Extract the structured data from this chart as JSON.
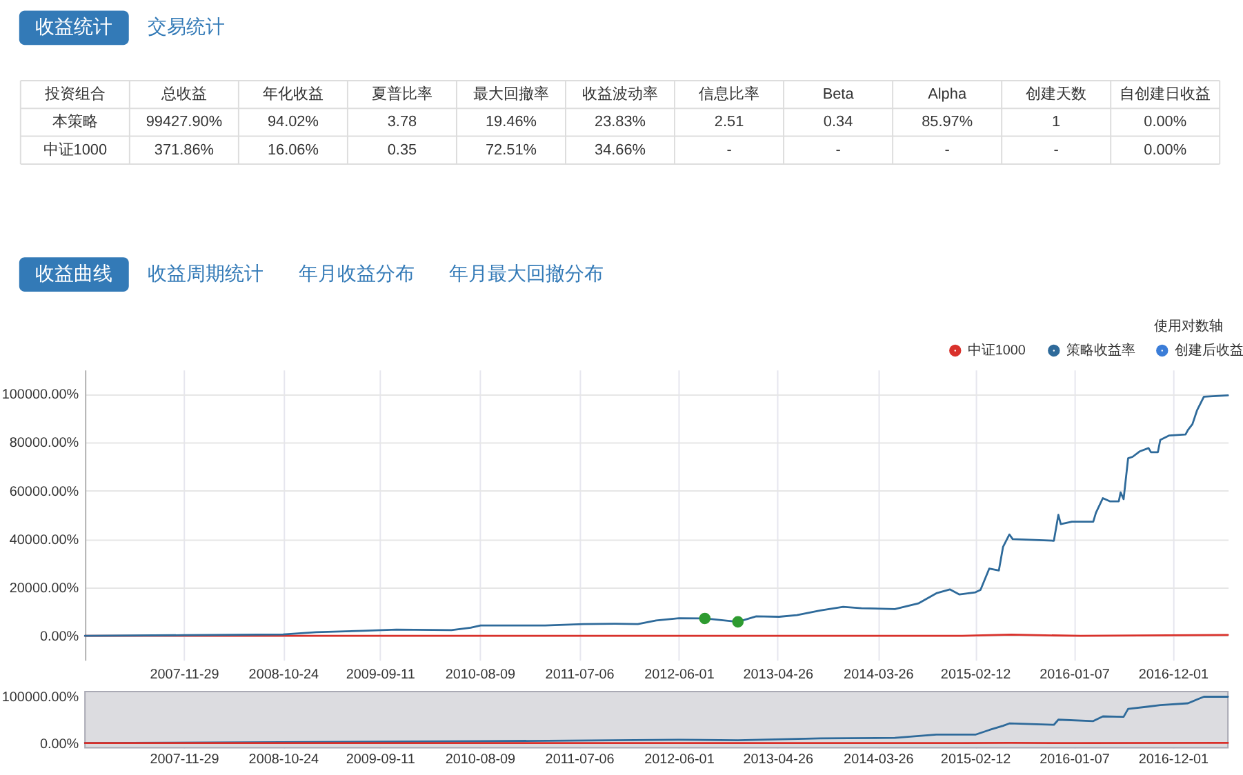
{
  "chart_data": [
    {
      "type": "other",
      "annotations": [
        "收益统计",
        "交易统计"
      ],
      "ylabel": "投资组合",
      "categories": [
        "总收益",
        "年化收益",
        "夏普比率",
        "最大回撤率",
        "收益波动率",
        "信息比率",
        "Beta",
        "Alpha",
        "创建天数",
        "自创建日收益"
      ],
      "y_categories": [
        "本策略",
        "中证1000"
      ],
      "cell_labels": [
        [
          "99427.90%",
          "94.02%",
          "3.78",
          "19.46%",
          "23.83%",
          "2.51",
          "0.34",
          "85.97%",
          "1",
          "0.00%"
        ],
        [
          "371.86%",
          "16.06%",
          "0.35",
          "72.51%",
          "34.66%",
          "-",
          "-",
          "-",
          "-",
          "0.00%"
        ]
      ]
    },
    {
      "type": "other",
      "annotations": [
        "收益曲线",
        "收益周期统计",
        "年月收益分布",
        "年月最大回撤分布"
      ]
    },
    {
      "type": "line",
      "annotations": [
        "使用对数轴"
      ],
      "xlim": [
        "2007-01-04",
        "2017-06-02"
      ],
      "ylim": [
        -10000,
        110000
      ],
      "xticks": [
        "2007-11-29",
        "2008-10-24",
        "2009-09-11",
        "2010-08-09",
        "2011-07-06",
        "2012-06-01",
        "2013-04-26",
        "2014-03-26",
        "2015-02-12",
        "2016-01-07",
        "2016-12-01"
      ],
      "yticks": [
        {
          "value": 0,
          "label": "0.00%"
        },
        {
          "value": 20000,
          "label": "20000.00%"
        },
        {
          "value": 40000,
          "label": "40000.00%"
        },
        {
          "value": 60000,
          "label": "60000.00%"
        },
        {
          "value": 80000,
          "label": "80000.00%"
        },
        {
          "value": 100000,
          "label": "100000.00%"
        }
      ],
      "grid": true,
      "legend": "top right",
      "line_style": "solid",
      "series": [
        {
          "name": "中证1000",
          "color": "#d9312b",
          "x": [
            "2007-01-04",
            "2014-12-31",
            "2015-06-12",
            "2016-01-28",
            "2017-06-02"
          ],
          "values": [
            0,
            0,
            500,
            0,
            400
          ]
        },
        {
          "name": "策略收益率",
          "color": "#2e6a9a",
          "x": [
            "2007-01-04",
            "2007-11-29",
            "2008-10-24",
            "2009-02-11",
            "2009-07-16",
            "2009-11-05",
            "2010-05-07",
            "2010-07-10",
            "2010-08-12",
            "2011-03-15",
            "2011-07-20",
            "2011-11-02",
            "2012-01-17",
            "2012-03-18",
            "2012-06-02",
            "2012-08-27",
            "2012-12-15",
            "2013-02-14",
            "2013-05-01",
            "2013-06-29",
            "2013-09-15",
            "2013-11-30",
            "2014-01-30",
            "2014-05-21",
            "2014-08-07",
            "2014-10-06",
            "2014-11-20",
            "2014-12-22",
            "2015-02-13",
            "2015-03-02",
            "2015-03-31",
            "2015-05-02",
            "2015-05-16",
            "2015-06-06",
            "2015-06-17",
            "2015-11-01",
            "2015-11-16",
            "2015-11-24",
            "2015-12-31",
            "2016-03-11",
            "2016-03-20",
            "2016-04-12",
            "2016-05-05",
            "2016-06-04",
            "2016-06-10",
            "2016-06-20",
            "2016-07-05",
            "2016-07-20",
            "2016-08-12",
            "2016-09-11",
            "2016-09-19",
            "2016-10-12",
            "2016-10-20",
            "2016-11-19",
            "2017-01-12",
            "2017-01-20",
            "2017-02-04",
            "2017-02-19",
            "2017-03-14",
            "2017-06-02"
          ],
          "values": [
            0,
            300,
            600,
            1500,
            2100,
            2600,
            2400,
            3400,
            4300,
            4300,
            4900,
            5000,
            4900,
            6400,
            7300,
            7200,
            5800,
            8100,
            7900,
            8600,
            10500,
            12000,
            11400,
            11100,
            13400,
            17600,
            19200,
            17100,
            18000,
            19000,
            27800,
            27000,
            36800,
            41900,
            40000,
            39300,
            50000,
            46200,
            47200,
            47200,
            50900,
            56900,
            55600,
            55600,
            59300,
            56500,
            73400,
            74000,
            76200,
            77600,
            75900,
            75900,
            81000,
            82800,
            83200,
            85100,
            87500,
            93100,
            98800,
            99400
          ]
        },
        {
          "name": "创建后收益",
          "color": "#3b7dd8"
        },
        {
          "type": "scatter",
          "marker": "circle",
          "color": "#2e9b30",
          "x": [
            "2012-08-27",
            "2012-12-15"
          ],
          "values": [
            7200,
            5800
          ]
        }
      ]
    },
    {
      "type": "line",
      "xlim": [
        "2007-01-04",
        "2017-06-02"
      ],
      "ylim": [
        -10000,
        110000
      ],
      "xticks": [
        "2007-11-29",
        "2008-10-24",
        "2009-09-11",
        "2010-08-09",
        "2011-07-06",
        "2012-06-01",
        "2013-04-26",
        "2014-03-26",
        "2015-02-12",
        "2016-01-07",
        "2016-12-01"
      ],
      "yticks": [
        {
          "value": 0,
          "label": "0.00%"
        },
        {
          "value": 100000,
          "label": "100000.00%"
        }
      ],
      "grid": "x",
      "line_style": "solid",
      "bands": [
        {
          "axis": "x",
          "from": "2007-01-04",
          "to": "2017-06-02",
          "color": "#dcdce0"
        }
      ],
      "series": [
        {
          "color": "#2e6a9a",
          "x": [
            "2007-01-04",
            "2010-08-12",
            "2012-06-02",
            "2012-12-15",
            "2013-09-15",
            "2014-05-21",
            "2014-10-06",
            "2015-02-13",
            "2015-03-31",
            "2015-05-16",
            "2015-06-06",
            "2015-11-01",
            "2015-11-16",
            "2016-03-11",
            "2016-04-12",
            "2016-06-20",
            "2016-07-05",
            "2016-09-11",
            "2016-10-20",
            "2017-01-20",
            "2017-02-19",
            "2017-03-14",
            "2017-06-02"
          ],
          "values": [
            0,
            4000,
            7000,
            6000,
            10000,
            11000,
            18000,
            18000,
            28000,
            37000,
            42000,
            39000,
            50000,
            47000,
            57000,
            56000,
            73000,
            78000,
            81000,
            85000,
            93000,
            99000,
            99000
          ]
        },
        {
          "color": "#d9312b",
          "x": [
            "2007-01-04",
            "2014-12-31",
            "2015-06-12",
            "2016-01-28",
            "2017-06-02"
          ],
          "values": [
            0,
            0,
            500,
            0,
            400
          ]
        }
      ]
    }
  ]
}
